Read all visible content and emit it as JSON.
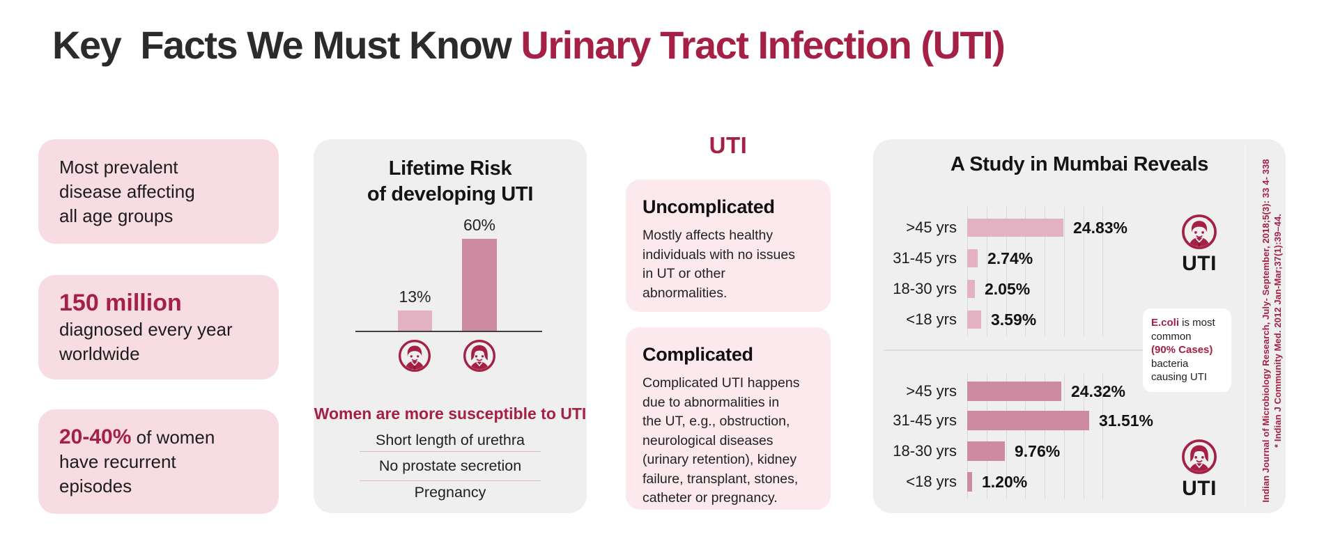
{
  "colors": {
    "accent_crimson": "#a52045",
    "fact_box_pink": "#f7dde3",
    "card_pink": "#fbe9ee",
    "panel_gray": "#efefef",
    "bar_light_pink": "#e3b2c2",
    "bar_dark_pink": "#cd8ba1",
    "text_dark": "#1d1c1c"
  },
  "title": {
    "part1": "Key  Facts We Must Know ",
    "part2": "Urinary Tract Infection (UTI)"
  },
  "facts": [
    {
      "text": "Most prevalent\ndisease affecting\nall age groups"
    },
    {
      "highlight": "150 million",
      "text": "diagnosed every year\nworldwide"
    },
    {
      "highlight": "20-40%",
      "text": " of women\nhave recurrent\nepisodes"
    }
  ],
  "lifetime": {
    "title": "Lifetime Risk\nof developing UTI",
    "note": "Women are more susceptible to UTI",
    "reasons": [
      "Short length of urethra",
      "No prostate secretion",
      "Pregnancy"
    ]
  },
  "uti_types": {
    "heading": "UTI",
    "cards": [
      {
        "title": "Uncomplicated",
        "body": "Mostly affects healthy\nindividuals with no issues\nin UT or other\nabnormalities."
      },
      {
        "title": "Complicated",
        "body": "Complicated UTI happens\ndue to abnormalities in\nthe UT, e.g., obstruction,\nneurological diseases\n(urinary retention), kidney\nfailure, transplant, stones,\ncatheter or pregnancy."
      }
    ]
  },
  "mumbai": {
    "title": "A Study in Mumbai Reveals",
    "male_chart_label": "UTI",
    "female_chart_label": "UTI",
    "ecoli_note": {
      "highlight1": "E.coli",
      "text1": " is most\ncommon\n",
      "highlight2": "(90% Cases)",
      "text2": "\nbacteria\ncausing UTI"
    },
    "citation_line1": "Indian Journal of Microbiology Research, July- September, 2018;5(3): 33 4- 338",
    "citation_line2": "* Indian J Community Med. 2012 Jan-Mar;37(1):39–44."
  },
  "chart_data": [
    {
      "type": "bar",
      "title": "Lifetime Risk of developing UTI",
      "categories": [
        "Men",
        "Women"
      ],
      "values": [
        13,
        60
      ],
      "value_labels": [
        "13%",
        "60%"
      ],
      "ylim": [
        0,
        65
      ],
      "grid": false,
      "annotation": "Women are more susceptible to UTI"
    },
    {
      "type": "bar",
      "orientation": "horizontal",
      "title": "A Study in Mumbai Reveals — Men (UTI)",
      "categories": [
        ">45 yrs",
        "31-45 yrs",
        "18-30 yrs",
        "<18 yrs"
      ],
      "values": [
        24.83,
        2.74,
        2.05,
        3.59
      ],
      "value_labels": [
        "24.83%",
        "2.74%",
        "2.05%",
        "3.59%"
      ],
      "xlim": [
        0,
        35
      ],
      "gridline_step": 5,
      "grid": true
    },
    {
      "type": "bar",
      "orientation": "horizontal",
      "title": "A Study in Mumbai Reveals — Women (UTI)",
      "categories": [
        ">45 yrs",
        "31-45 yrs",
        "18-30 yrs",
        "<18 yrs"
      ],
      "values": [
        24.32,
        31.51,
        9.76,
        1.2
      ],
      "value_labels": [
        "24.32%",
        "31.51%",
        "9.76%",
        "1.20%"
      ],
      "xlim": [
        0,
        35
      ],
      "gridline_step": 5,
      "grid": true
    }
  ]
}
